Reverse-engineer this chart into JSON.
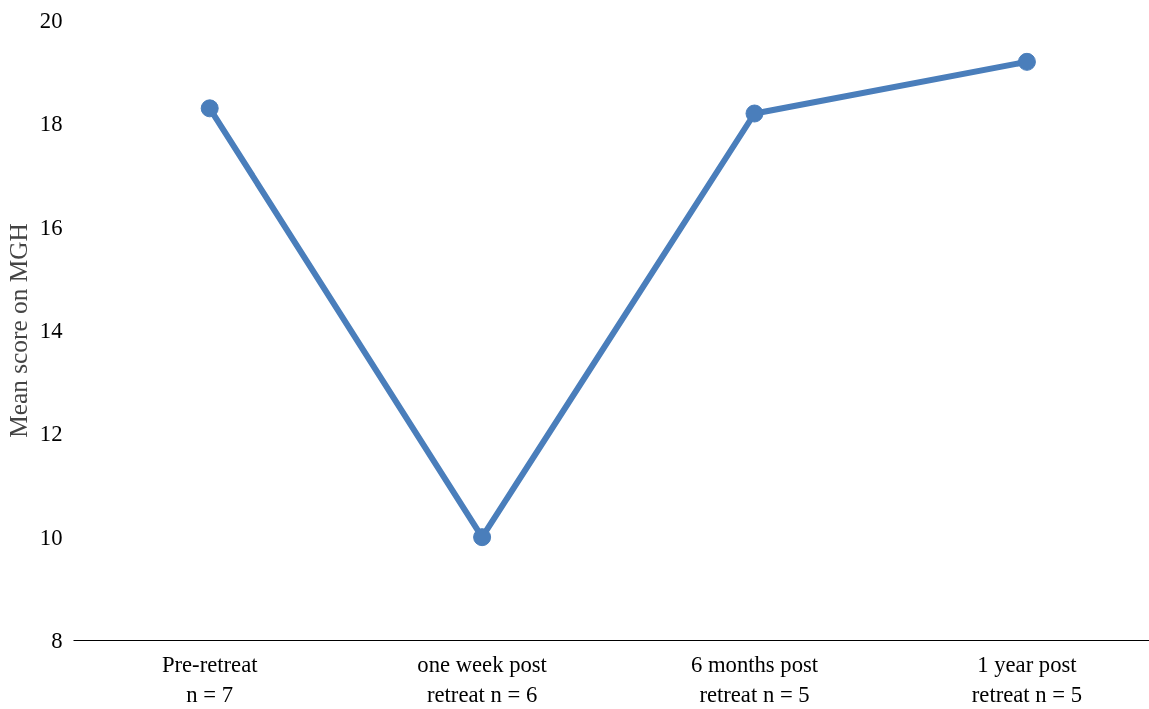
{
  "chart_data": {
    "type": "line",
    "ylabel": "Mean score on MGH",
    "categories": [
      "Pre-retreat\nn = 7",
      "one week post\nretreat n = 6",
      "6 months post\nretreat n = 5",
      "1 year post\nretreat n = 5"
    ],
    "series": [
      {
        "color": "#4a7ebb",
        "values": [
          18.3,
          10.0,
          18.2,
          19.2
        ]
      }
    ],
    "ylim": [
      8,
      20
    ],
    "yticks": [
      8,
      10,
      12,
      14,
      16,
      18,
      20
    ],
    "grid": false,
    "marker": "circle",
    "line_style": "solid"
  }
}
